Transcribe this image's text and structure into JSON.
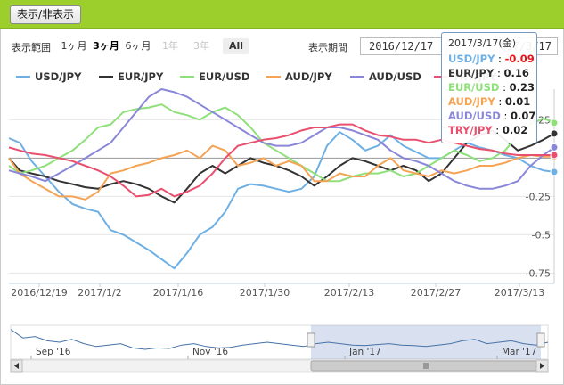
{
  "toggle_label": "表示/非表示",
  "range": {
    "label": "表示範囲",
    "buttons": [
      {
        "label": "1ヶ月",
        "state": "normal"
      },
      {
        "label": "3ヶ月",
        "state": "selected"
      },
      {
        "label": "6ヶ月",
        "state": "normal"
      },
      {
        "label": "1年",
        "state": "disabled"
      },
      {
        "label": "3年",
        "state": "disabled"
      },
      {
        "label": "All",
        "state": "all"
      }
    ]
  },
  "period": {
    "label": "表示期間",
    "from": "2016/12/17",
    "to": "2017/3/17"
  },
  "tooltip": {
    "date": "2017/3/17(金)",
    "rows": [
      {
        "name": "USD/JPY",
        "value": "-0.09",
        "color": "#6fb0e4"
      },
      {
        "name": "EUR/JPY",
        "value": "0.16",
        "color": "#333333"
      },
      {
        "name": "EUR/USD",
        "value": "0.23",
        "color": "#8fe07a"
      },
      {
        "name": "AUD/JPY",
        "value": "0.01",
        "color": "#f5a455"
      },
      {
        "name": "AUD/USD",
        "value": "0.07",
        "color": "#8a87d8"
      },
      {
        "name": "TRY/JPY",
        "value": "0.02",
        "color": "#e9506f"
      }
    ]
  },
  "navigator": {
    "labels": [
      "Sep '16",
      "Nov '16",
      "Jan '17",
      "Mar '17"
    ],
    "profile": [
      0.05,
      0.35,
      0.3,
      0.45,
      0.5,
      0.4,
      0.55,
      0.65,
      0.6,
      0.55,
      0.7,
      0.75,
      0.7,
      0.72,
      0.6,
      0.55,
      0.65,
      0.7,
      0.68,
      0.6,
      0.55,
      0.5,
      0.55,
      0.6,
      0.65,
      0.55,
      0.5,
      0.55,
      0.6,
      0.62,
      0.58,
      0.55,
      0.6,
      0.62,
      0.65,
      0.6,
      0.55,
      0.45,
      0.4,
      0.55,
      0.5,
      0.45,
      0.55,
      0.6,
      0.5
    ]
  },
  "chart_data": {
    "type": "line",
    "x": [
      0,
      12,
      25,
      40,
      55,
      70,
      84,
      98,
      112,
      126,
      140,
      154,
      168,
      182,
      196,
      210,
      224,
      238,
      252,
      266,
      280,
      294,
      308,
      322,
      336,
      350,
      364,
      378,
      392,
      406,
      420,
      434,
      448,
      462,
      476,
      490,
      504,
      518,
      532,
      546,
      560,
      574,
      588,
      600
    ],
    "x_tick_labels": [
      "2016/12/19",
      "2017/1/2",
      "2017/1/16",
      "2017/1/30",
      "2017/2/13",
      "2017/2/27",
      "2017/3/13"
    ],
    "y_tick_labels": [
      "0.25",
      "-0.25",
      "-0.5",
      "-0.75"
    ],
    "ylim": [
      -0.8,
      0.45
    ],
    "series": [
      {
        "name": "USD/JPY",
        "color": "#6fb0e4",
        "values": [
          0.13,
          0.1,
          -0.02,
          -0.12,
          -0.22,
          -0.3,
          -0.33,
          -0.35,
          -0.47,
          -0.5,
          -0.55,
          -0.6,
          -0.66,
          -0.72,
          -0.62,
          -0.5,
          -0.45,
          -0.35,
          -0.2,
          -0.17,
          -0.18,
          -0.2,
          -0.22,
          -0.2,
          -0.12,
          0.08,
          0.17,
          0.12,
          0.05,
          0.08,
          0.15,
          0.08,
          0.04,
          0.0,
          0.0,
          0.05,
          0.1,
          0.07,
          0.05,
          0.02,
          0.0,
          -0.05,
          -0.08,
          -0.09
        ]
      },
      {
        "name": "EUR/JPY",
        "color": "#333333",
        "values": [
          0.0,
          -0.08,
          -0.1,
          -0.12,
          -0.15,
          -0.17,
          -0.19,
          -0.2,
          -0.17,
          -0.15,
          -0.17,
          -0.2,
          -0.25,
          -0.29,
          -0.2,
          -0.1,
          -0.05,
          -0.1,
          -0.05,
          0.0,
          -0.03,
          -0.05,
          -0.08,
          -0.12,
          -0.18,
          -0.12,
          -0.05,
          0.0,
          -0.02,
          -0.05,
          -0.08,
          -0.05,
          -0.08,
          -0.15,
          -0.1,
          0.0,
          0.1,
          0.15,
          0.18,
          0.12,
          0.05,
          0.08,
          0.12,
          0.16
        ]
      },
      {
        "name": "EUR/USD",
        "color": "#8fe07a",
        "values": [
          -0.05,
          -0.1,
          -0.08,
          -0.05,
          0.0,
          0.05,
          0.12,
          0.2,
          0.22,
          0.3,
          0.32,
          0.33,
          0.35,
          0.3,
          0.28,
          0.25,
          0.3,
          0.33,
          0.28,
          0.2,
          0.1,
          0.05,
          0.0,
          -0.05,
          -0.1,
          -0.15,
          -0.15,
          -0.12,
          -0.1,
          -0.1,
          -0.08,
          -0.12,
          -0.1,
          -0.05,
          0.0,
          0.05,
          0.02,
          -0.02,
          0.0,
          0.05,
          0.15,
          0.22,
          0.26,
          0.23
        ]
      },
      {
        "name": "AUD/JPY",
        "color": "#f5a455",
        "values": [
          0.0,
          -0.1,
          -0.15,
          -0.2,
          -0.25,
          -0.25,
          -0.27,
          -0.22,
          -0.1,
          -0.08,
          -0.05,
          -0.03,
          0.0,
          0.02,
          0.05,
          0.0,
          0.08,
          0.05,
          -0.05,
          -0.03,
          0.0,
          -0.05,
          -0.02,
          -0.05,
          -0.15,
          -0.15,
          -0.1,
          -0.12,
          -0.12,
          -0.05,
          0.0,
          -0.08,
          -0.1,
          -0.12,
          -0.08,
          -0.1,
          -0.08,
          -0.05,
          -0.05,
          -0.03,
          0.0,
          0.02,
          0.01,
          0.01
        ]
      },
      {
        "name": "AUD/USD",
        "color": "#8a87d8",
        "values": [
          -0.08,
          -0.1,
          -0.12,
          -0.15,
          -0.1,
          -0.05,
          0.0,
          0.05,
          0.1,
          0.2,
          0.3,
          0.4,
          0.45,
          0.43,
          0.4,
          0.35,
          0.3,
          0.25,
          0.2,
          0.15,
          0.1,
          0.08,
          0.08,
          0.1,
          0.15,
          0.2,
          0.2,
          0.18,
          0.15,
          0.12,
          0.05,
          0.0,
          -0.02,
          -0.05,
          -0.1,
          -0.15,
          -0.18,
          -0.2,
          -0.2,
          -0.18,
          -0.15,
          -0.05,
          0.02,
          0.07
        ]
      },
      {
        "name": "TRY/JPY",
        "color": "#e9506f",
        "values": [
          0.07,
          0.05,
          0.03,
          0.02,
          0.0,
          -0.02,
          -0.05,
          -0.08,
          -0.12,
          -0.18,
          -0.25,
          -0.24,
          -0.2,
          -0.25,
          -0.22,
          -0.18,
          -0.1,
          0.0,
          0.08,
          0.1,
          0.12,
          0.13,
          0.15,
          0.18,
          0.2,
          0.2,
          0.22,
          0.22,
          0.18,
          0.15,
          0.14,
          0.12,
          0.12,
          0.1,
          0.12,
          0.1,
          0.08,
          0.06,
          0.05,
          0.03,
          0.02,
          0.02,
          0.02,
          0.02
        ]
      }
    ]
  }
}
